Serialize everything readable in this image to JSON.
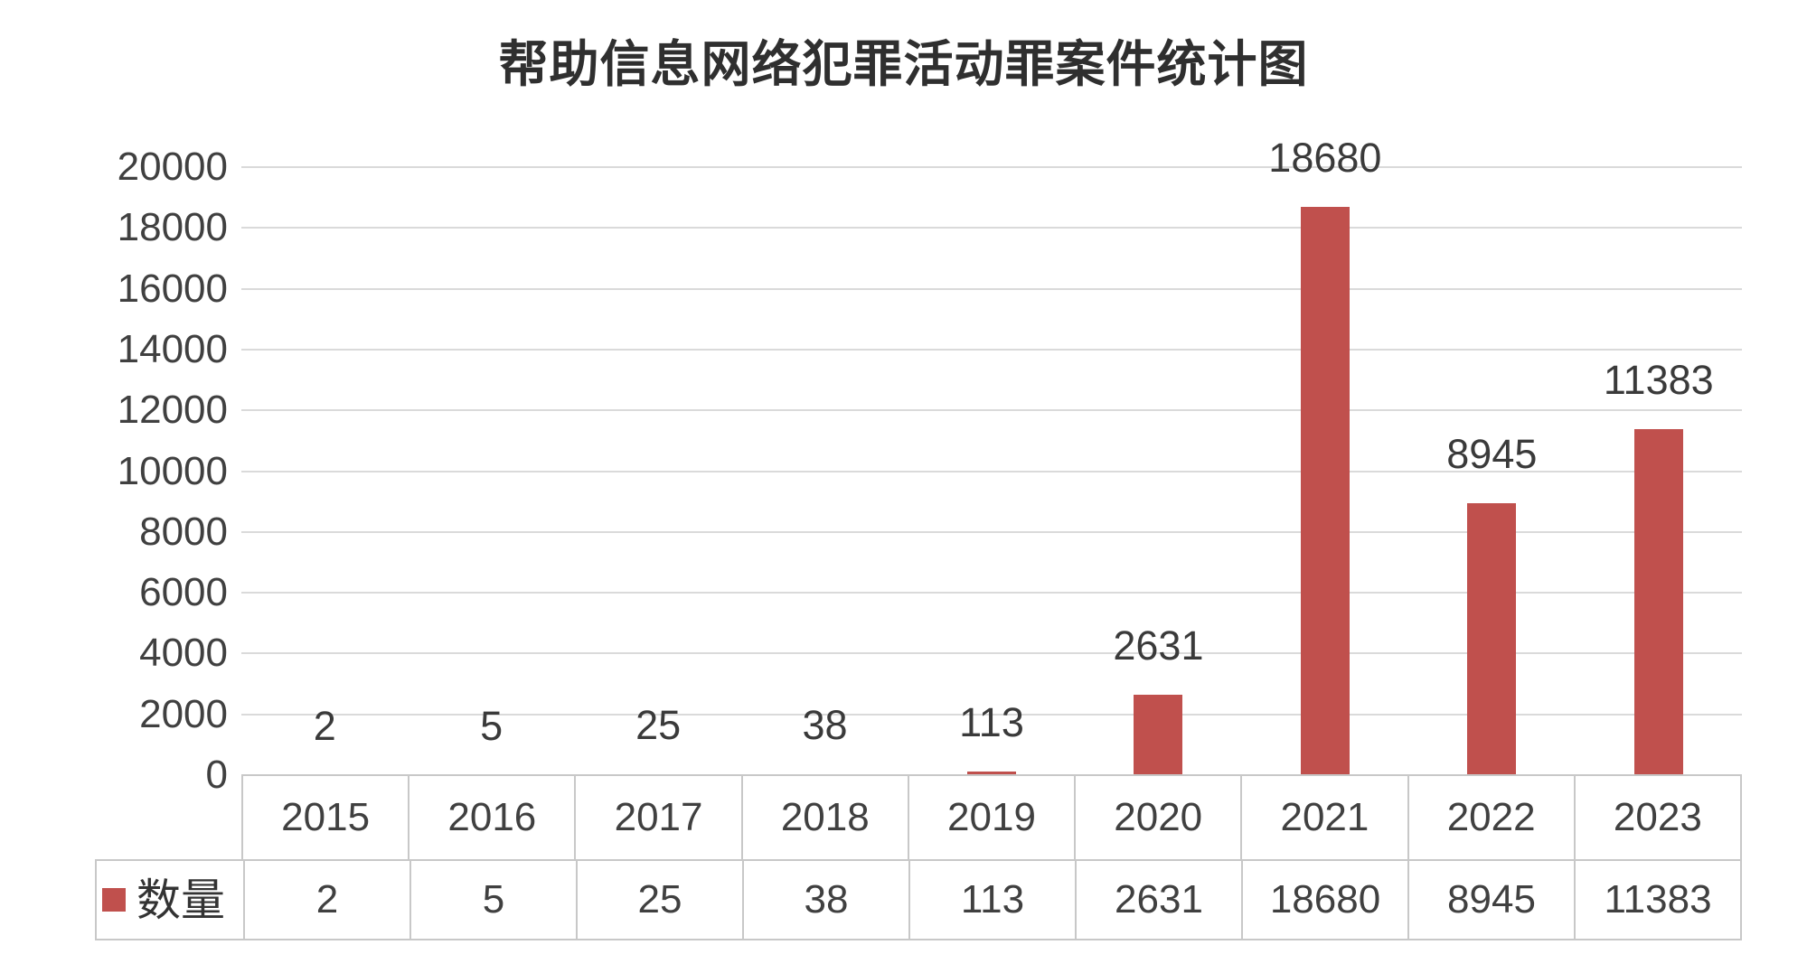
{
  "title": "帮助信息网络犯罪活动罪案件统计图",
  "legend": {
    "label": "数量"
  },
  "colors": {
    "bar": "#c0504d",
    "gridline": "#dadada",
    "table_border": "#c8c8c8",
    "axis_text": "#404040",
    "label_text": "#3a3a3a",
    "title_text": "#2f2f2f"
  },
  "y_axis": {
    "min": 0,
    "max": 20000,
    "step": 2000,
    "ticks": [
      "0",
      "2000",
      "4000",
      "6000",
      "8000",
      "10000",
      "12000",
      "14000",
      "16000",
      "18000",
      "20000"
    ]
  },
  "chart_data": {
    "type": "bar",
    "title": "帮助信息网络犯罪活动罪案件统计图",
    "categories": [
      "2015",
      "2016",
      "2017",
      "2018",
      "2019",
      "2020",
      "2021",
      "2022",
      "2023"
    ],
    "series": [
      {
        "name": "数量",
        "values": [
          2,
          5,
          25,
          38,
          113,
          2631,
          18680,
          8945,
          11383
        ]
      }
    ],
    "data_labels": [
      "2",
      "5",
      "25",
      "38",
      "113",
      "2631",
      "18680",
      "8945",
      "11383"
    ],
    "xlabel": "",
    "ylabel": "",
    "ylim": [
      0,
      20000
    ],
    "ytick_step": 2000,
    "grid": "horizontal-only",
    "legend_position": "data-table-left",
    "data_table": true
  }
}
